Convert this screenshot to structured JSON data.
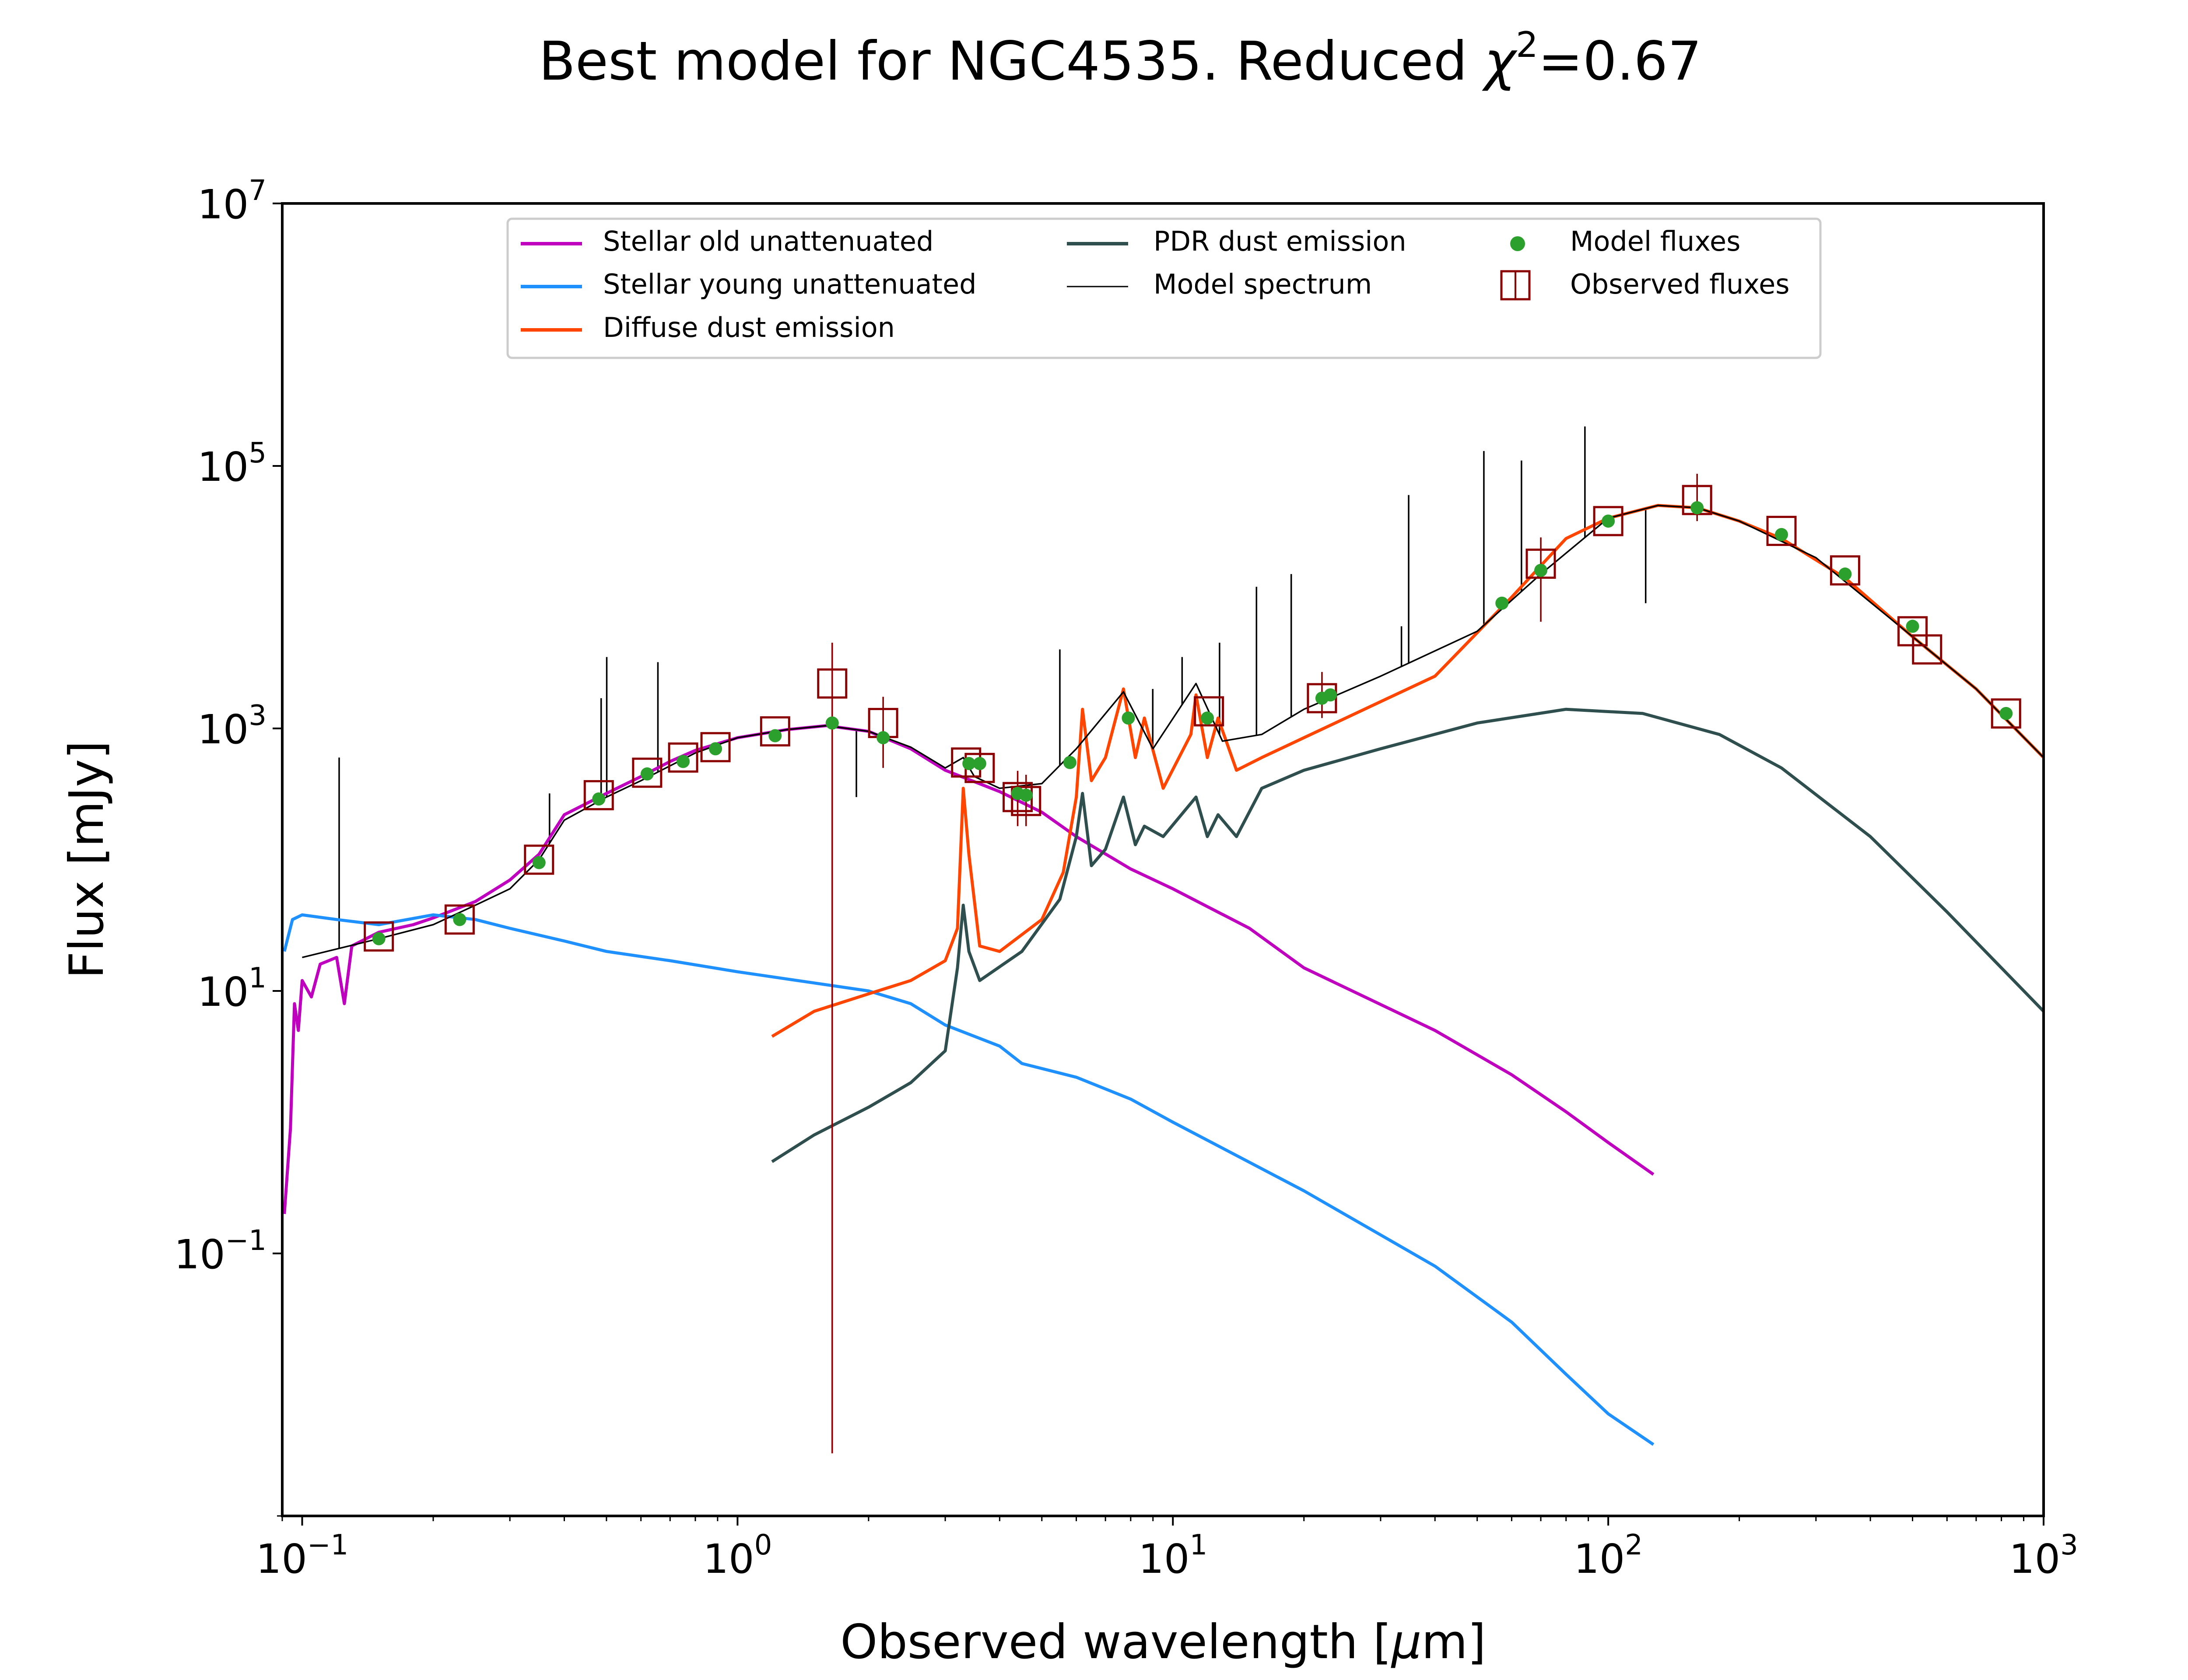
{
  "chart_data": {
    "type": "line",
    "title_text": "Best model for NGC4535. Reduced ",
    "title_chi": "χ",
    "title_sup": "2",
    "title_value": "=0.67",
    "xlabel_pre": "Observed wavelength [",
    "xlabel_mu": "μ",
    "xlabel_post": "m]",
    "ylabel": "Flux [mJy]",
    "xscale": "log",
    "yscale": "log",
    "xlim": [
      0.09,
      1000
    ],
    "ylim": [
      0.001,
      10000000
    ],
    "xticks": [
      {
        "base": "10",
        "exp": "−1",
        "value": 0.1
      },
      {
        "base": "10",
        "exp": "0",
        "value": 1
      },
      {
        "base": "10",
        "exp": "1",
        "value": 10
      },
      {
        "base": "10",
        "exp": "2",
        "value": 100
      },
      {
        "base": "10",
        "exp": "3",
        "value": 1000
      }
    ],
    "yticks": [
      {
        "base": "10",
        "exp": "−1",
        "value": 0.1
      },
      {
        "base": "10",
        "exp": "1",
        "value": 10
      },
      {
        "base": "10",
        "exp": "3",
        "value": 1000
      },
      {
        "base": "10",
        "exp": "5",
        "value": 100000
      },
      {
        "base": "10",
        "exp": "7",
        "value": 10000000
      }
    ],
    "legend_position": "upper center",
    "legend": [
      {
        "label": "Stellar old unattenuated",
        "color": "#bf00bf",
        "kind": "line"
      },
      {
        "label": "Stellar young unattenuated",
        "color": "#1e90ff",
        "kind": "line"
      },
      {
        "label": "Diffuse dust emission",
        "color": "#ff4500",
        "kind": "line"
      },
      {
        "label": "PDR dust emission",
        "color": "#2f4f4f",
        "kind": "line"
      },
      {
        "label": "Model spectrum",
        "color": "#000000",
        "kind": "thin-line"
      },
      {
        "label": "Model fluxes",
        "color": "#2ca02c",
        "kind": "dot"
      },
      {
        "label": "Observed fluxes",
        "color": "#8b0000",
        "kind": "square"
      }
    ],
    "series": [
      {
        "name": "Stellar old unattenuated",
        "color": "#bf00bf",
        "points": [
          [
            0.091,
            0.2
          ],
          [
            0.094,
            0.9
          ],
          [
            0.096,
            8
          ],
          [
            0.098,
            5
          ],
          [
            0.1,
            12
          ],
          [
            0.105,
            9
          ],
          [
            0.11,
            16
          ],
          [
            0.12,
            18
          ],
          [
            0.125,
            8
          ],
          [
            0.13,
            22
          ],
          [
            0.15,
            28
          ],
          [
            0.18,
            32
          ],
          [
            0.2,
            36
          ],
          [
            0.25,
            48
          ],
          [
            0.3,
            70
          ],
          [
            0.35,
            110
          ],
          [
            0.4,
            220
          ],
          [
            0.5,
            320
          ],
          [
            0.6,
            430
          ],
          [
            0.7,
            560
          ],
          [
            0.8,
            680
          ],
          [
            1.0,
            850
          ],
          [
            1.3,
            980
          ],
          [
            1.6,
            1050
          ],
          [
            2.0,
            950
          ],
          [
            2.5,
            700
          ],
          [
            3.0,
            480
          ],
          [
            4.0,
            330
          ],
          [
            5.0,
            230
          ],
          [
            6.0,
            150
          ],
          [
            8.0,
            85
          ],
          [
            10,
            60
          ],
          [
            15,
            30
          ],
          [
            20,
            15
          ],
          [
            40,
            5
          ],
          [
            60,
            2.3
          ],
          [
            80,
            1.2
          ],
          [
            100,
            0.7
          ],
          [
            127,
            0.4
          ]
        ]
      },
      {
        "name": "Stellar young unattenuated",
        "color": "#1e90ff",
        "points": [
          [
            0.091,
            20
          ],
          [
            0.095,
            35
          ],
          [
            0.1,
            38
          ],
          [
            0.12,
            35
          ],
          [
            0.15,
            32
          ],
          [
            0.2,
            38
          ],
          [
            0.25,
            35
          ],
          [
            0.3,
            30
          ],
          [
            0.4,
            24
          ],
          [
            0.5,
            20
          ],
          [
            0.7,
            17
          ],
          [
            1.0,
            14
          ],
          [
            1.5,
            11.5
          ],
          [
            2.0,
            10
          ],
          [
            2.5,
            8
          ],
          [
            3.0,
            5.5
          ],
          [
            4.0,
            3.8
          ],
          [
            4.5,
            2.8
          ],
          [
            6.0,
            2.2
          ],
          [
            8.0,
            1.5
          ],
          [
            10,
            1.0
          ],
          [
            20,
            0.3
          ],
          [
            40,
            0.08
          ],
          [
            60,
            0.03
          ],
          [
            80,
            0.012
          ],
          [
            100,
            0.006
          ],
          [
            127,
            0.0035
          ]
        ]
      },
      {
        "name": "Diffuse dust emission",
        "color": "#ff4500",
        "points": [
          [
            1.2,
            4.5
          ],
          [
            1.5,
            7
          ],
          [
            2.0,
            9.5
          ],
          [
            2.5,
            12
          ],
          [
            3.0,
            17
          ],
          [
            3.2,
            30
          ],
          [
            3.3,
            350
          ],
          [
            3.4,
            110
          ],
          [
            3.6,
            22
          ],
          [
            4.0,
            20
          ],
          [
            5.0,
            35
          ],
          [
            5.6,
            80
          ],
          [
            6.0,
            300
          ],
          [
            6.2,
            1400
          ],
          [
            6.5,
            400
          ],
          [
            7.0,
            600
          ],
          [
            7.7,
            2000
          ],
          [
            8.2,
            600
          ],
          [
            8.6,
            1200
          ],
          [
            9.5,
            350
          ],
          [
            11.0,
            900
          ],
          [
            11.3,
            1800
          ],
          [
            12.0,
            600
          ],
          [
            12.7,
            1200
          ],
          [
            14.0,
            480
          ],
          [
            16,
            600
          ],
          [
            20,
            850
          ],
          [
            30,
            1600
          ],
          [
            40,
            2500
          ],
          [
            60,
            10000
          ],
          [
            80,
            28000
          ],
          [
            100,
            40000
          ],
          [
            130,
            50000
          ],
          [
            160,
            48000
          ],
          [
            200,
            38000
          ],
          [
            250,
            28000
          ],
          [
            350,
            14000
          ],
          [
            500,
            5000
          ],
          [
            700,
            2000
          ],
          [
            1000,
            600
          ]
        ]
      },
      {
        "name": "PDR dust emission",
        "color": "#2f4f4f",
        "points": [
          [
            1.2,
            0.5
          ],
          [
            1.5,
            0.8
          ],
          [
            2.0,
            1.3
          ],
          [
            2.5,
            2.0
          ],
          [
            3.0,
            3.5
          ],
          [
            3.2,
            15
          ],
          [
            3.3,
            45
          ],
          [
            3.4,
            20
          ],
          [
            3.6,
            12
          ],
          [
            4.5,
            20
          ],
          [
            5.5,
            50
          ],
          [
            6.0,
            150
          ],
          [
            6.2,
            320
          ],
          [
            6.5,
            90
          ],
          [
            7.0,
            120
          ],
          [
            7.7,
            300
          ],
          [
            8.2,
            130
          ],
          [
            8.6,
            180
          ],
          [
            9.5,
            150
          ],
          [
            11.3,
            300
          ],
          [
            12.0,
            150
          ],
          [
            12.7,
            220
          ],
          [
            14.0,
            150
          ],
          [
            16,
            350
          ],
          [
            20,
            480
          ],
          [
            30,
            700
          ],
          [
            50,
            1100
          ],
          [
            80,
            1400
          ],
          [
            120,
            1300
          ],
          [
            180,
            900
          ],
          [
            250,
            500
          ],
          [
            400,
            150
          ],
          [
            600,
            40
          ],
          [
            1000,
            7
          ]
        ]
      },
      {
        "name": "Model spectrum",
        "color": "#000000",
        "points": [
          [
            0.1,
            18
          ],
          [
            0.15,
            25
          ],
          [
            0.2,
            32
          ],
          [
            0.25,
            45
          ],
          [
            0.3,
            60
          ],
          [
            0.35,
            100
          ],
          [
            0.4,
            200
          ],
          [
            0.5,
            300
          ],
          [
            0.6,
            400
          ],
          [
            0.8,
            650
          ],
          [
            1.0,
            850
          ],
          [
            1.3,
            980
          ],
          [
            1.6,
            1050
          ],
          [
            2.0,
            950
          ],
          [
            2.5,
            720
          ],
          [
            3.0,
            500
          ],
          [
            3.3,
            600
          ],
          [
            3.5,
            430
          ],
          [
            4.0,
            350
          ],
          [
            5.0,
            380
          ],
          [
            6.0,
            700
          ],
          [
            7.7,
            1900
          ],
          [
            9.0,
            700
          ],
          [
            11.3,
            2200
          ],
          [
            13,
            800
          ],
          [
            16,
            900
          ],
          [
            20,
            1400
          ],
          [
            30,
            2500
          ],
          [
            50,
            5500
          ],
          [
            70,
            15000
          ],
          [
            100,
            40000
          ],
          [
            130,
            50000
          ],
          [
            160,
            48000
          ],
          [
            200,
            38000
          ],
          [
            300,
            20000
          ],
          [
            500,
            5000
          ],
          [
            700,
            2000
          ],
          [
            1000,
            600
          ]
        ]
      }
    ],
    "model_fluxes": [
      [
        0.15,
        25
      ],
      [
        0.23,
        35
      ],
      [
        0.35,
        95
      ],
      [
        0.48,
        290
      ],
      [
        0.62,
        450
      ],
      [
        0.75,
        560
      ],
      [
        0.89,
        700
      ],
      [
        1.22,
        880
      ],
      [
        1.65,
        1100
      ],
      [
        2.16,
        850
      ],
      [
        3.4,
        540
      ],
      [
        3.6,
        540
      ],
      [
        4.4,
        320
      ],
      [
        4.6,
        310
      ],
      [
        5.8,
        550
      ],
      [
        7.9,
        1200
      ],
      [
        12,
        1200
      ],
      [
        22,
        1700
      ],
      [
        23,
        1800
      ],
      [
        57,
        9000
      ],
      [
        70,
        16000
      ],
      [
        100,
        38000
      ],
      [
        160,
        48000
      ],
      [
        250,
        30000
      ],
      [
        350,
        15000
      ],
      [
        500,
        6000
      ],
      [
        820,
        1300
      ]
    ],
    "observed_fluxes": [
      [
        0.15,
        26,
        0,
        0
      ],
      [
        0.23,
        35,
        0,
        0
      ],
      [
        0.35,
        100,
        0,
        0
      ],
      [
        0.48,
        310,
        0,
        0
      ],
      [
        0.62,
        460,
        0,
        0
      ],
      [
        0.75,
        600,
        0,
        0
      ],
      [
        0.89,
        720,
        0,
        0
      ],
      [
        1.22,
        950,
        0,
        0
      ],
      [
        1.65,
        2200,
        0.003,
        4500
      ],
      [
        2.16,
        1100,
        500,
        0
      ],
      [
        3.35,
        550,
        0,
        0
      ],
      [
        3.6,
        500,
        0,
        0
      ],
      [
        4.4,
        300,
        180,
        0
      ],
      [
        4.6,
        280,
        180,
        0
      ],
      [
        12.1,
        1350,
        0,
        0
      ],
      [
        22,
        1700,
        1200,
        0
      ],
      [
        70,
        18000,
        6500,
        0
      ],
      [
        100,
        38000,
        0,
        0
      ],
      [
        160,
        55000,
        38000,
        0
      ],
      [
        250,
        32000,
        0,
        0
      ],
      [
        350,
        16000,
        0,
        0
      ],
      [
        500,
        5500,
        0,
        0
      ],
      [
        540,
        4000,
        0,
        0
      ],
      [
        820,
        1300,
        0,
        0
      ]
    ],
    "emission_lines": [
      [
        0.1216,
        600
      ],
      [
        0.37,
        320
      ],
      [
        0.4861,
        1700
      ],
      [
        0.5007,
        3500
      ],
      [
        0.6563,
        3200
      ],
      [
        1.875,
        300
      ],
      [
        5.5,
        4000
      ],
      [
        8.99,
        2000
      ],
      [
        10.5,
        3500
      ],
      [
        12.8,
        4500
      ],
      [
        15.56,
        12000
      ],
      [
        18.7,
        15000
      ],
      [
        33.5,
        6000
      ],
      [
        34.8,
        60000
      ],
      [
        51.8,
        130000
      ],
      [
        63.2,
        110000
      ],
      [
        88.4,
        200000
      ],
      [
        121.9,
        9000
      ],
      [
        157.7,
        48000
      ]
    ]
  }
}
